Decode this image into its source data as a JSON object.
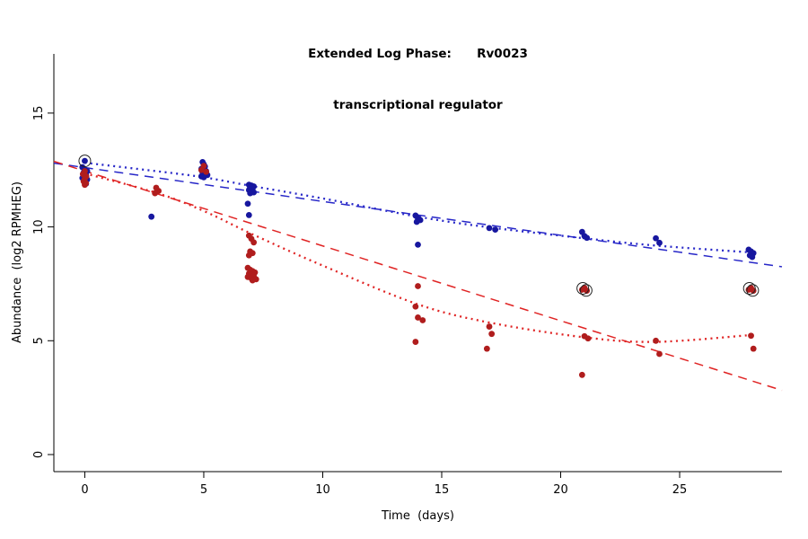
{
  "chart_data": {
    "type": "scatter",
    "title_line1": "Extended Log Phase:      Rv0023",
    "title_line2": "transcriptional regulator",
    "xlabel": "Time  (days)",
    "ylabel": "Abundance  (log2 RPMHEG)",
    "xlim": [
      -1.3,
      29.3
    ],
    "ylim": [
      -0.75,
      17.6
    ],
    "x_ticks": [
      0,
      5,
      10,
      15,
      20,
      25
    ],
    "y_ticks": [
      0,
      5,
      10,
      15
    ],
    "grid": false,
    "legend": "none",
    "series": [
      {
        "name": "blue-series",
        "color": "#17179f",
        "points": [
          [
            -0.1,
            12.62
          ],
          [
            0,
            12.9
          ],
          [
            0,
            12.52
          ],
          [
            0.1,
            12.45
          ],
          [
            -0.05,
            12.38
          ],
          [
            0.05,
            12.3
          ],
          [
            0,
            12.22
          ],
          [
            -0.1,
            12.15
          ],
          [
            0.1,
            12.08
          ],
          [
            0,
            12.0
          ],
          [
            0.05,
            11.9
          ],
          [
            2.8,
            10.45
          ],
          [
            4.95,
            12.85
          ],
          [
            5,
            12.75
          ],
          [
            5.05,
            12.65
          ],
          [
            4.9,
            12.55
          ],
          [
            5,
            12.5
          ],
          [
            5.1,
            12.45
          ],
          [
            4.95,
            12.4
          ],
          [
            5.05,
            12.35
          ],
          [
            5,
            12.3
          ],
          [
            5.15,
            12.28
          ],
          [
            4.9,
            12.22
          ],
          [
            5,
            12.18
          ],
          [
            6.9,
            11.85
          ],
          [
            7,
            11.82
          ],
          [
            7.1,
            11.78
          ],
          [
            6.95,
            11.72
          ],
          [
            7.05,
            11.68
          ],
          [
            6.9,
            11.62
          ],
          [
            7,
            11.58
          ],
          [
            7.1,
            11.52
          ],
          [
            6.95,
            11.48
          ],
          [
            6.85,
            11.02
          ],
          [
            6.9,
            10.52
          ],
          [
            13.9,
            10.5
          ],
          [
            14,
            10.38
          ],
          [
            14.1,
            10.3
          ],
          [
            13.95,
            10.22
          ],
          [
            14,
            9.22
          ],
          [
            17,
            9.95
          ],
          [
            17.25,
            9.88
          ],
          [
            20.9,
            9.78
          ],
          [
            21,
            9.6
          ],
          [
            21.1,
            9.52
          ],
          [
            24,
            9.5
          ],
          [
            24.15,
            9.3
          ],
          [
            27.9,
            9.0
          ],
          [
            28,
            8.92
          ],
          [
            28.1,
            8.85
          ],
          [
            27.95,
            8.75
          ],
          [
            28.05,
            8.68
          ]
        ]
      },
      {
        "name": "red-series",
        "color": "#b01d1d",
        "points": [
          [
            0,
            12.45
          ],
          [
            -0.08,
            12.32
          ],
          [
            0.06,
            12.22
          ],
          [
            0,
            12.12
          ],
          [
            -0.05,
            12.0
          ],
          [
            0.05,
            11.92
          ],
          [
            0,
            11.85
          ],
          [
            3,
            11.72
          ],
          [
            3.1,
            11.58
          ],
          [
            2.95,
            11.48
          ],
          [
            5,
            12.68
          ],
          [
            4.9,
            12.5
          ],
          [
            5.1,
            12.42
          ],
          [
            6.9,
            9.62
          ],
          [
            7,
            9.48
          ],
          [
            7.1,
            9.32
          ],
          [
            6.95,
            8.92
          ],
          [
            7.05,
            8.85
          ],
          [
            6.9,
            8.75
          ],
          [
            6.85,
            8.2
          ],
          [
            6.95,
            8.12
          ],
          [
            7.05,
            8.06
          ],
          [
            7.15,
            8.0
          ],
          [
            6.9,
            7.95
          ],
          [
            7,
            7.9
          ],
          [
            7.1,
            7.85
          ],
          [
            6.85,
            7.8
          ],
          [
            7,
            7.74
          ],
          [
            7.2,
            7.7
          ],
          [
            7.05,
            7.65
          ],
          [
            14,
            7.4
          ],
          [
            13.9,
            6.5
          ],
          [
            14,
            6.02
          ],
          [
            14.2,
            5.9
          ],
          [
            13.9,
            4.95
          ],
          [
            17,
            5.62
          ],
          [
            17.1,
            5.3
          ],
          [
            16.9,
            4.65
          ],
          [
            21,
            7.32
          ],
          [
            20.9,
            7.24
          ],
          [
            21.1,
            7.2
          ],
          [
            21,
            5.2
          ],
          [
            21.15,
            5.1
          ],
          [
            20.9,
            3.5
          ],
          [
            24,
            5.0
          ],
          [
            24.15,
            4.42
          ],
          [
            28,
            7.32
          ],
          [
            27.9,
            7.24
          ],
          [
            28.1,
            7.2
          ],
          [
            28,
            5.22
          ],
          [
            28.1,
            4.65
          ]
        ]
      }
    ],
    "fits": [
      {
        "name": "blue-linear-fit",
        "style": "dashed",
        "color": "#2727c8",
        "points": [
          [
            -1.3,
            12.8
          ],
          [
            29.3,
            8.25
          ]
        ]
      },
      {
        "name": "blue-smooth-fit",
        "style": "dotted",
        "color": "#2727c8",
        "points": [
          [
            0,
            12.82
          ],
          [
            3,
            12.45
          ],
          [
            5,
            12.18
          ],
          [
            7,
            11.8
          ],
          [
            10,
            11.25
          ],
          [
            14,
            10.45
          ],
          [
            17,
            9.98
          ],
          [
            21,
            9.5
          ],
          [
            24,
            9.18
          ],
          [
            28,
            8.88
          ]
        ]
      },
      {
        "name": "red-linear-fit",
        "style": "dashed",
        "color": "#e02424",
        "points": [
          [
            -1.3,
            12.88
          ],
          [
            29.3,
            2.82
          ]
        ]
      },
      {
        "name": "red-smooth-fit",
        "style": "dotted",
        "color": "#e02424",
        "points": [
          [
            0,
            12.35
          ],
          [
            3,
            11.5
          ],
          [
            5,
            10.7
          ],
          [
            7,
            9.7
          ],
          [
            10,
            8.3
          ],
          [
            14,
            6.6
          ],
          [
            17,
            5.8
          ],
          [
            21,
            5.15
          ],
          [
            24,
            4.95
          ],
          [
            28,
            5.25
          ]
        ]
      }
    ],
    "outlier_markers": {
      "color": "#222222",
      "points": [
        [
          0,
          12.9
        ],
        [
          20.93,
          7.3
        ],
        [
          21.07,
          7.21
        ],
        [
          27.93,
          7.3
        ],
        [
          28.07,
          7.21
        ]
      ]
    }
  }
}
